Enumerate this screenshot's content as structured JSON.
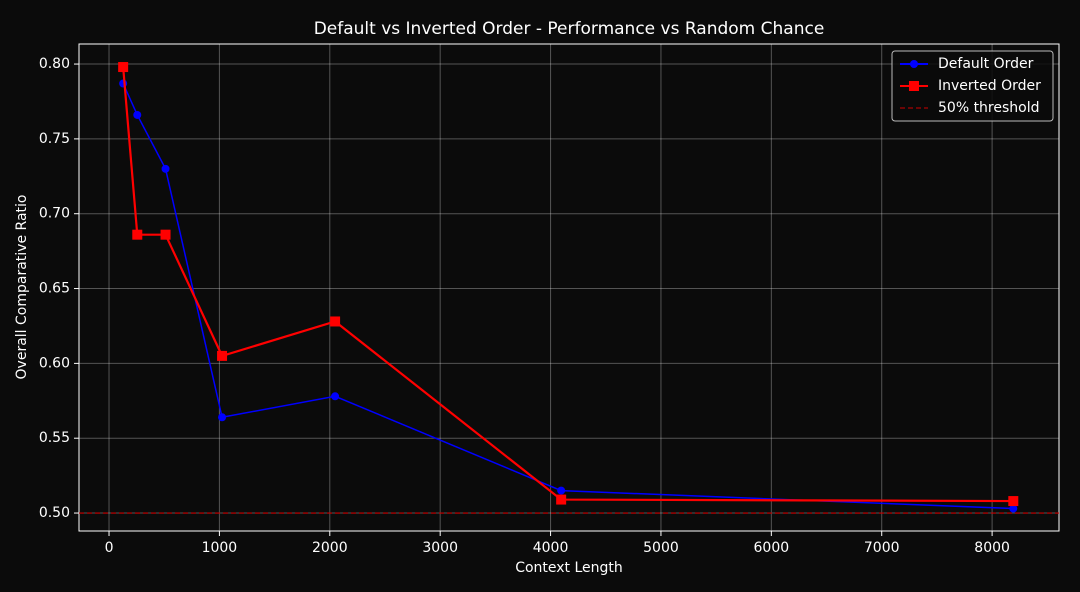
{
  "chart_data": {
    "type": "line",
    "title": "Default vs Inverted Order - Performance vs Random Chance",
    "x_label": "Context Length",
    "y_label": "Overall Comparative Ratio",
    "x": [
      128,
      256,
      512,
      1024,
      2048,
      4096,
      8192
    ],
    "series": [
      {
        "name": "Default Order",
        "color": "#0000ff",
        "marker": "circle",
        "values": [
          0.787,
          0.766,
          0.73,
          0.564,
          0.578,
          0.515,
          0.503
        ]
      },
      {
        "name": "Inverted Order",
        "color": "#ff0000",
        "marker": "square",
        "values": [
          0.798,
          0.686,
          0.686,
          0.605,
          0.628,
          0.509,
          0.508
        ]
      }
    ],
    "threshold": {
      "name": "50% threshold",
      "value": 0.5,
      "color": "#cc0000"
    },
    "xlim": [
      -272,
      8606
    ],
    "ylim": [
      0.488,
      0.8134
    ],
    "xticks": [
      0,
      1000,
      2000,
      3000,
      4000,
      5000,
      6000,
      7000,
      8000
    ],
    "yticks": [
      {
        "value": 0.5,
        "label": "0.50"
      },
      {
        "value": 0.55,
        "label": "0.55"
      },
      {
        "value": 0.6,
        "label": "0.60"
      },
      {
        "value": 0.65,
        "label": "0.65"
      },
      {
        "value": 0.7,
        "label": "0.70"
      },
      {
        "value": 0.75,
        "label": "0.75"
      },
      {
        "value": 0.8,
        "label": "0.80"
      }
    ],
    "grid": true,
    "legend": "upper right"
  }
}
